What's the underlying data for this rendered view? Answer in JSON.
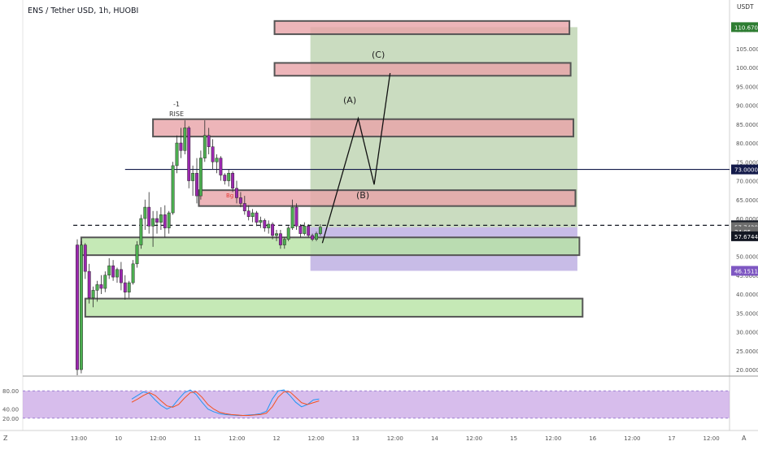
{
  "header": {
    "symbol_title": "ENS / Tether USD, 1h, HUOBI"
  },
  "price_axis": {
    "currency": "USDT",
    "ticks": [
      "110.0000",
      "105.0000",
      "100.0000",
      "95.0000",
      "90.0000",
      "85.0000",
      "80.0000",
      "75.0000",
      "70.0000",
      "65.0000",
      "60.0000",
      "55.0000",
      "50.0000",
      "45.0000",
      "40.0000",
      "35.0000",
      "30.0000",
      "25.0000",
      "20.0000"
    ],
    "badges": [
      {
        "label": "110.6709",
        "value": 110.6709,
        "color": "#2e7d32",
        "text_color": "#ffffff"
      },
      {
        "label": "73.0000",
        "value": 73.0,
        "color": "#131a4a",
        "text_color": "#ffffff"
      },
      {
        "label": "58.2113",
        "value": 58.2113,
        "color": "#131722",
        "text_color": "#ffffff"
      },
      {
        "label": "57.7420",
        "value": 57.742,
        "color": "#6d6d6d",
        "text_color": "#ffffff"
      },
      {
        "label": "34:05",
        "value": 56.6,
        "color": "#6d6d6d",
        "text_color": "#ffffff"
      },
      {
        "label": "57.6744",
        "value": 55.3,
        "color": "#131722",
        "text_color": "#ffffff"
      },
      {
        "label": "46.1511",
        "value": 46.1511,
        "color": "#7e57c2",
        "text_color": "#ffffff"
      }
    ]
  },
  "time_axis": {
    "labels": [
      {
        "label": "13:00",
        "slot": 0
      },
      {
        "label": "10",
        "slot": 1
      },
      {
        "label": "12:00",
        "slot": 2
      },
      {
        "label": "11",
        "slot": 3
      },
      {
        "label": "12:00",
        "slot": 4
      },
      {
        "label": "12",
        "slot": 5
      },
      {
        "label": "12:00",
        "slot": 6
      },
      {
        "label": "13",
        "slot": 7
      },
      {
        "label": "12:00",
        "slot": 8
      },
      {
        "label": "14",
        "slot": 9
      },
      {
        "label": "12:00",
        "slot": 10
      },
      {
        "label": "15",
        "slot": 11
      },
      {
        "label": "12:00",
        "slot": 12
      },
      {
        "label": "16",
        "slot": 13
      },
      {
        "label": "12:00",
        "slot": 14
      },
      {
        "label": "17",
        "slot": 15
      },
      {
        "label": "12:00",
        "slot": 16
      }
    ],
    "left_marker": "Z",
    "right_marker": "A"
  },
  "annotations": {
    "wave_a": "(A)",
    "wave_b": "(B)",
    "wave_c": "(C)",
    "rise_label": "RISE",
    "minus_one": "-1",
    "sig_label": "Bg"
  },
  "oscillator": {
    "ticks": [
      "80.00",
      "40.00",
      "20.00"
    ],
    "band_upper": 80,
    "band_lower": 20,
    "band_color": "#c9a7e6"
  },
  "colors": {
    "bull": "#4caf50",
    "bear": "#9c27b0",
    "supply_zone": "#e8a3a8",
    "demand_zone": "#b6e3a4",
    "target_zone": "#9fbf8c",
    "stop_zone": "#b1a0dd",
    "k_line": "#2196f3",
    "d_line": "#f4511e"
  },
  "chart_data": {
    "type": "candlestick",
    "title": "ENS / Tether USD, 1h, HUOBI",
    "ylim": [
      18.5,
      116
    ],
    "candles": [
      {
        "o": 53.0,
        "h": 54.5,
        "l": 18.5,
        "c": 20.0
      },
      {
        "o": 20.0,
        "h": 54.0,
        "l": 19.0,
        "c": 53.0
      },
      {
        "o": 53.0,
        "h": 53.5,
        "l": 44.0,
        "c": 46.0
      },
      {
        "o": 46.0,
        "h": 48.0,
        "l": 37.5,
        "c": 39.0
      },
      {
        "o": 39.0,
        "h": 42.0,
        "l": 36.5,
        "c": 41.0
      },
      {
        "o": 41.0,
        "h": 43.5,
        "l": 38.0,
        "c": 42.5
      },
      {
        "o": 42.5,
        "h": 45.0,
        "l": 40.0,
        "c": 41.5
      },
      {
        "o": 41.5,
        "h": 46.0,
        "l": 40.5,
        "c": 45.0
      },
      {
        "o": 45.0,
        "h": 49.5,
        "l": 44.0,
        "c": 47.5
      },
      {
        "o": 47.5,
        "h": 49.0,
        "l": 43.5,
        "c": 44.5
      },
      {
        "o": 44.5,
        "h": 47.0,
        "l": 43.0,
        "c": 46.5
      },
      {
        "o": 46.5,
        "h": 48.5,
        "l": 41.0,
        "c": 43.0
      },
      {
        "o": 43.0,
        "h": 45.0,
        "l": 38.5,
        "c": 40.5
      },
      {
        "o": 40.5,
        "h": 43.5,
        "l": 39.0,
        "c": 43.0
      },
      {
        "o": 43.0,
        "h": 49.0,
        "l": 42.5,
        "c": 48.0
      },
      {
        "o": 48.0,
        "h": 54.0,
        "l": 47.0,
        "c": 53.0
      },
      {
        "o": 53.0,
        "h": 61.0,
        "l": 52.0,
        "c": 60.0
      },
      {
        "o": 60.0,
        "h": 65.0,
        "l": 57.0,
        "c": 63.0
      },
      {
        "o": 63.0,
        "h": 67.0,
        "l": 56.0,
        "c": 58.0
      },
      {
        "o": 58.0,
        "h": 62.0,
        "l": 52.5,
        "c": 60.0
      },
      {
        "o": 60.0,
        "h": 62.0,
        "l": 56.0,
        "c": 59.0
      },
      {
        "o": 59.0,
        "h": 63.0,
        "l": 57.0,
        "c": 61.0
      },
      {
        "o": 61.0,
        "h": 63.5,
        "l": 55.0,
        "c": 57.5
      },
      {
        "o": 57.5,
        "h": 62.0,
        "l": 56.0,
        "c": 61.5
      },
      {
        "o": 61.5,
        "h": 75.0,
        "l": 61.0,
        "c": 74.0
      },
      {
        "o": 74.0,
        "h": 82.0,
        "l": 72.0,
        "c": 80.0
      },
      {
        "o": 80.0,
        "h": 84.0,
        "l": 76.0,
        "c": 78.0
      },
      {
        "o": 78.0,
        "h": 86.0,
        "l": 77.0,
        "c": 84.0
      },
      {
        "o": 84.0,
        "h": 84.5,
        "l": 68.0,
        "c": 70.0
      },
      {
        "o": 70.0,
        "h": 74.0,
        "l": 66.0,
        "c": 72.0
      },
      {
        "o": 72.0,
        "h": 76.0,
        "l": 64.0,
        "c": 66.0
      },
      {
        "o": 66.0,
        "h": 78.0,
        "l": 65.0,
        "c": 76.0
      },
      {
        "o": 76.0,
        "h": 86.0,
        "l": 75.0,
        "c": 82.0
      },
      {
        "o": 82.0,
        "h": 84.0,
        "l": 77.0,
        "c": 79.0
      },
      {
        "o": 79.0,
        "h": 81.0,
        "l": 73.0,
        "c": 75.0
      },
      {
        "o": 75.0,
        "h": 77.0,
        "l": 72.0,
        "c": 76.0
      },
      {
        "o": 76.0,
        "h": 76.5,
        "l": 70.0,
        "c": 71.5
      },
      {
        "o": 71.5,
        "h": 72.0,
        "l": 69.0,
        "c": 70.0
      },
      {
        "o": 70.0,
        "h": 73.0,
        "l": 68.5,
        "c": 72.0
      },
      {
        "o": 72.0,
        "h": 72.5,
        "l": 67.0,
        "c": 68.0
      },
      {
        "o": 68.0,
        "h": 70.0,
        "l": 64.0,
        "c": 65.5
      },
      {
        "o": 65.5,
        "h": 67.0,
        "l": 63.0,
        "c": 64.0
      },
      {
        "o": 64.0,
        "h": 66.0,
        "l": 61.0,
        "c": 62.0
      },
      {
        "o": 62.0,
        "h": 63.5,
        "l": 59.5,
        "c": 60.5
      },
      {
        "o": 60.5,
        "h": 62.5,
        "l": 59.0,
        "c": 61.5
      },
      {
        "o": 61.5,
        "h": 62.0,
        "l": 58.0,
        "c": 59.0
      },
      {
        "o": 59.0,
        "h": 60.5,
        "l": 57.5,
        "c": 59.5
      },
      {
        "o": 59.5,
        "h": 60.0,
        "l": 56.5,
        "c": 57.5
      },
      {
        "o": 57.5,
        "h": 59.5,
        "l": 56.0,
        "c": 58.5
      },
      {
        "o": 58.5,
        "h": 59.0,
        "l": 54.5,
        "c": 55.5
      },
      {
        "o": 55.5,
        "h": 57.0,
        "l": 54.0,
        "c": 56.0
      },
      {
        "o": 56.0,
        "h": 57.0,
        "l": 52.0,
        "c": 53.0
      },
      {
        "o": 53.0,
        "h": 55.0,
        "l": 52.0,
        "c": 54.5
      },
      {
        "o": 54.5,
        "h": 58.0,
        "l": 54.0,
        "c": 57.5
      },
      {
        "o": 57.5,
        "h": 65.0,
        "l": 57.0,
        "c": 63.0
      },
      {
        "o": 63.0,
        "h": 64.0,
        "l": 57.0,
        "c": 58.0
      },
      {
        "o": 58.0,
        "h": 58.5,
        "l": 55.0,
        "c": 56.0
      },
      {
        "o": 56.0,
        "h": 59.0,
        "l": 55.5,
        "c": 58.0
      },
      {
        "o": 58.0,
        "h": 58.5,
        "l": 55.0,
        "c": 55.5
      },
      {
        "o": 55.5,
        "h": 56.0,
        "l": 54.0,
        "c": 54.5
      },
      {
        "o": 54.5,
        "h": 56.5,
        "l": 54.0,
        "c": 56.0
      },
      {
        "o": 56.0,
        "h": 58.5,
        "l": 55.5,
        "c": 57.7
      }
    ],
    "horizontal_lines": [
      {
        "price": 73.0,
        "style": "solid",
        "color": "#131a4a"
      },
      {
        "price": 58.2113,
        "style": "dashed",
        "color": "#131722"
      }
    ],
    "zones": [
      {
        "kind": "supply",
        "top": 112.3,
        "bottom": 108.8,
        "from_bar": 49.5,
        "to_bar": 123.5
      },
      {
        "kind": "supply",
        "top": 101.2,
        "bottom": 97.8,
        "from_bar": 49.5,
        "to_bar": 123.8
      },
      {
        "kind": "supply",
        "top": 86.3,
        "bottom": 81.7,
        "from_bar": 19.0,
        "to_bar": 124.5
      },
      {
        "kind": "supply",
        "top": 67.5,
        "bottom": 63.3,
        "from_bar": 30.5,
        "to_bar": 125.0
      },
      {
        "kind": "demand",
        "top": 55.0,
        "bottom": 50.3,
        "from_bar": 1.0,
        "to_bar": 126.0
      },
      {
        "kind": "demand",
        "top": 38.8,
        "bottom": 34.0,
        "from_bar": 2.0,
        "to_bar": 126.8
      }
    ],
    "position": {
      "entry": 57.7,
      "target": 110.6709,
      "stop": 46.1511,
      "from_bar": 58.5,
      "to_bar": 125.5
    },
    "wave_path": [
      {
        "bar": 61.5,
        "price": 53.5
      },
      {
        "bar": 70.5,
        "price": 86.5
      },
      {
        "bar": 74.5,
        "price": 69.0
      },
      {
        "bar": 78.5,
        "price": 98.5
      }
    ],
    "oscillator_series": [
      {
        "name": "K",
        "values": [
          62,
          70,
          78,
          74,
          60,
          48,
          40,
          46,
          62,
          76,
          82,
          72,
          55,
          40,
          34,
          30,
          28,
          27,
          26,
          26,
          27,
          28,
          30,
          35,
          62,
          80,
          82,
          70,
          55,
          45,
          50,
          60,
          62
        ]
      },
      {
        "name": "D",
        "values": [
          55,
          62,
          70,
          76,
          70,
          58,
          47,
          44,
          50,
          64,
          76,
          78,
          66,
          50,
          40,
          33,
          30,
          28,
          27,
          26,
          26,
          27,
          28,
          31,
          45,
          66,
          78,
          78,
          66,
          54,
          50,
          54,
          58
        ]
      }
    ]
  }
}
